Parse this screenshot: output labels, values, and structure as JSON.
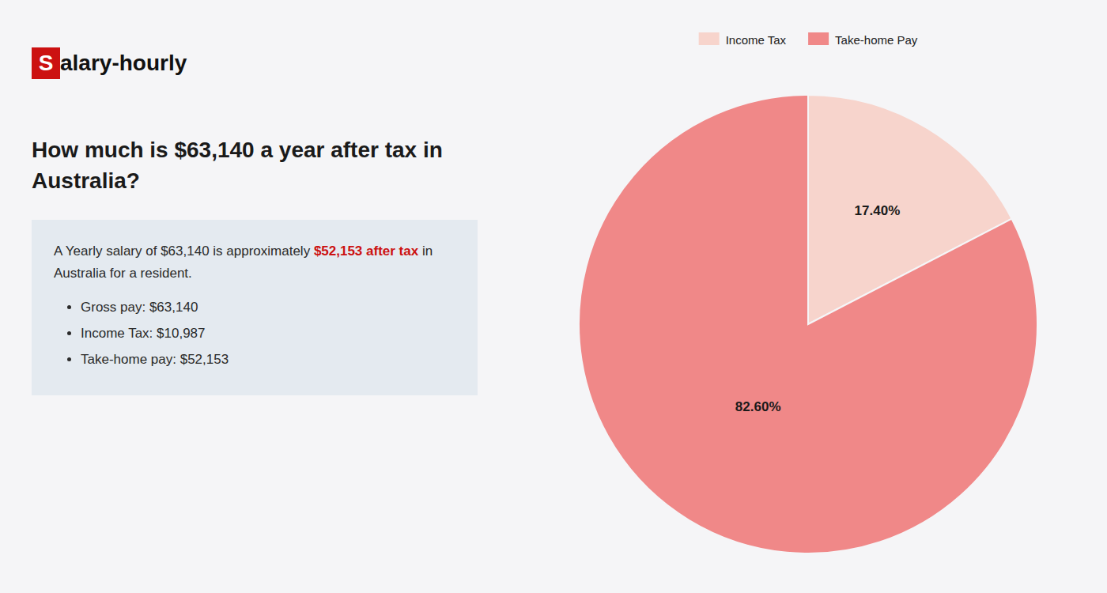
{
  "chart_data": {
    "type": "pie",
    "title": "How much is $63,140 a year after tax in\nAustralia?",
    "categories": [
      "Income Tax",
      "Take-home Pay"
    ],
    "values": [
      17.4,
      82.6
    ],
    "value_labels": [
      "17.40%",
      "82.60%"
    ],
    "colors": [
      "#f7d4cc",
      "#f08888"
    ],
    "data_labels": true,
    "legend": "top",
    "annotations": [
      "S",
      "alary-hourly",
      "A Yearly salary of $63,140 is approximately ",
      "$52,153 after tax",
      " in",
      "Australia for a resident.",
      "Gross pay: $63,140",
      "Income Tax: $10,987",
      "Take-home pay: $52,153"
    ]
  }
}
